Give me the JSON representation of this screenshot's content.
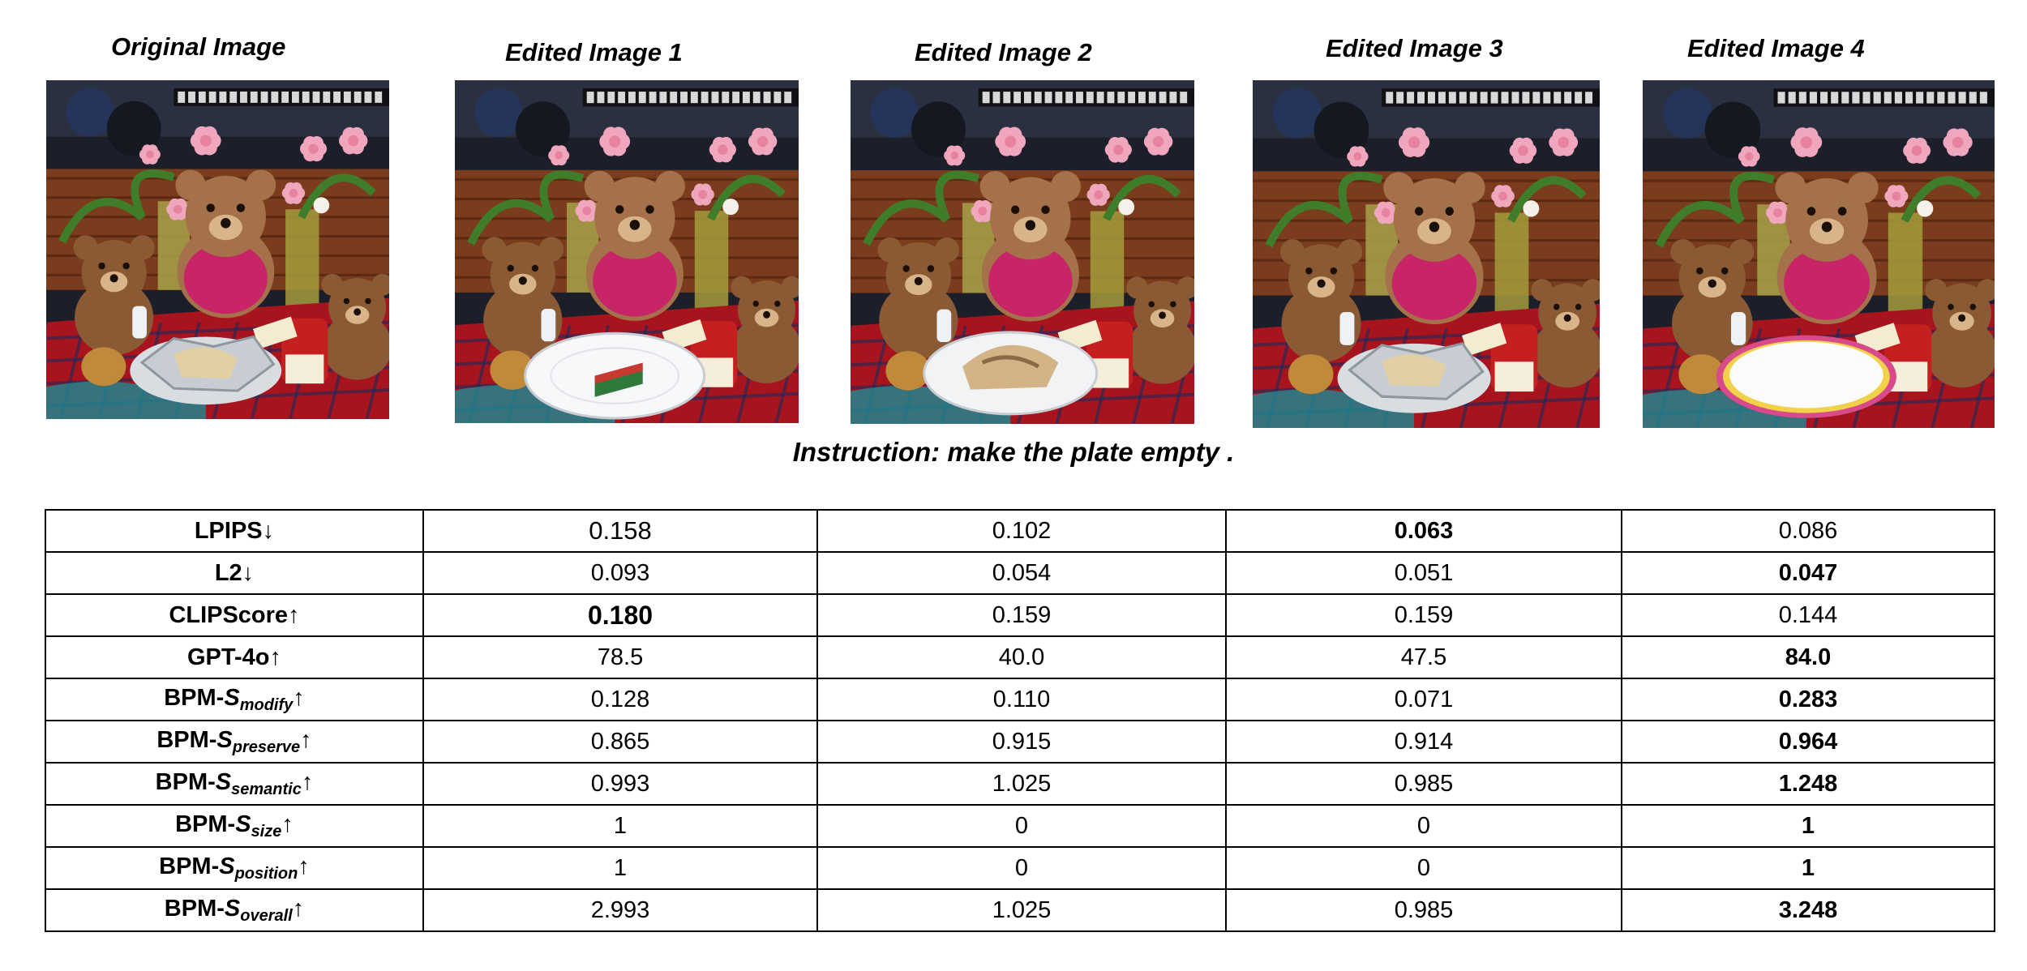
{
  "figure": {
    "images": [
      {
        "title": "Original Image",
        "plate": "foil"
      },
      {
        "title": "Edited Image 1",
        "plate": "white-cake"
      },
      {
        "title": "Edited Image 2",
        "plate": "food"
      },
      {
        "title": "Edited Image 3",
        "plate": "foil"
      },
      {
        "title": "Edited Image 4",
        "plate": "empty-colorful"
      }
    ],
    "instruction": "Instruction: make the plate empty ."
  },
  "table": {
    "rows": [
      {
        "label": "LPIPS",
        "sym": "",
        "sub": "",
        "arrow": "↓",
        "values": [
          "0.158",
          "0.102",
          "0.063",
          "0.086"
        ],
        "bold": [
          false,
          false,
          true,
          false
        ]
      },
      {
        "label": "L2",
        "sym": "",
        "sub": "",
        "arrow": "↓",
        "values": [
          "0.093",
          "0.054",
          "0.051",
          "0.047"
        ],
        "bold": [
          false,
          false,
          false,
          true
        ]
      },
      {
        "label": "CLIPScore",
        "sym": "",
        "sub": "",
        "arrow": "↑",
        "values": [
          "0.180",
          "0.159",
          "0.159",
          "0.144"
        ],
        "bold": [
          true,
          false,
          false,
          false
        ]
      },
      {
        "label": "GPT-4o",
        "sym": "",
        "sub": "",
        "arrow": "↑",
        "values": [
          "78.5",
          "40.0",
          "47.5",
          "84.0"
        ],
        "bold": [
          false,
          false,
          false,
          true
        ]
      },
      {
        "label": "BPM-",
        "sym": "S",
        "sub": "modify",
        "arrow": "↑",
        "values": [
          "0.128",
          "0.110",
          "0.071",
          "0.283"
        ],
        "bold": [
          false,
          false,
          false,
          true
        ]
      },
      {
        "label": "BPM-",
        "sym": "S",
        "sub": "preserve",
        "arrow": "↑",
        "values": [
          "0.865",
          "0.915",
          "0.914",
          "0.964"
        ],
        "bold": [
          false,
          false,
          false,
          true
        ]
      },
      {
        "label": "BPM-",
        "sym": "S",
        "sub": "semantic",
        "arrow": "↑",
        "values": [
          "0.993",
          "1.025",
          "0.985",
          "1.248"
        ],
        "bold": [
          false,
          false,
          false,
          true
        ]
      },
      {
        "label": "BPM-",
        "sym": "S",
        "sub": "size",
        "arrow": "↑",
        "values": [
          "1",
          "0",
          "0",
          "1"
        ],
        "bold": [
          false,
          false,
          false,
          true
        ]
      },
      {
        "label": "BPM-",
        "sym": "S",
        "sub": "position",
        "arrow": "↑",
        "values": [
          "1",
          "0",
          "0",
          "1"
        ],
        "bold": [
          false,
          false,
          false,
          true
        ]
      },
      {
        "label": "BPM-",
        "sym": "S",
        "sub": "overall",
        "arrow": "↑",
        "values": [
          "2.993",
          "1.025",
          "0.985",
          "3.248"
        ],
        "bold": [
          false,
          false,
          false,
          true
        ]
      }
    ]
  }
}
